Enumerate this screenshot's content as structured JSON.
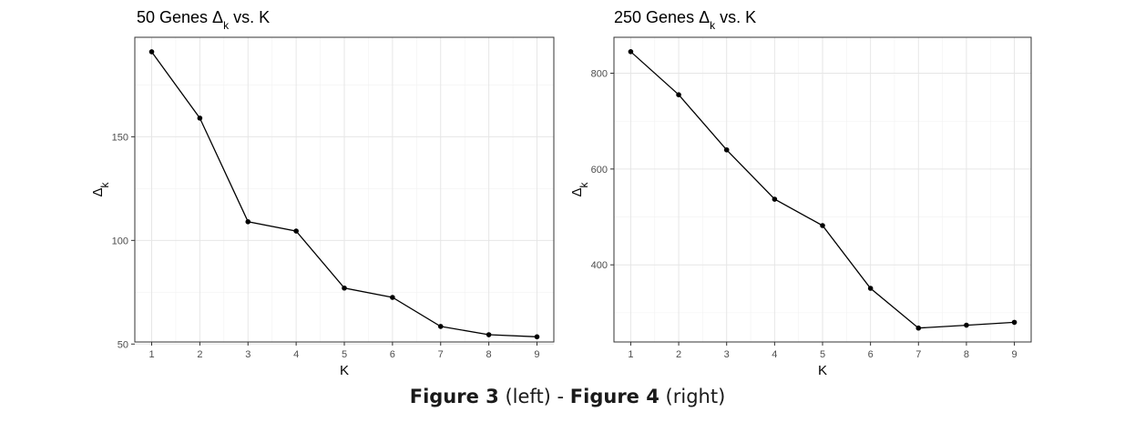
{
  "chart_data": [
    {
      "type": "line",
      "title": "50 Genes Δk vs. K",
      "xlabel": "K",
      "ylabel": "Δk",
      "x": [
        1,
        2,
        3,
        4,
        5,
        6,
        7,
        8,
        9
      ],
      "y": [
        191,
        159,
        109,
        104.5,
        77,
        72.5,
        58.5,
        54.5,
        53.5
      ],
      "xlim": [
        0.65,
        9.35
      ],
      "ylim": [
        51,
        198
      ],
      "yticks": [
        50,
        100,
        150
      ],
      "ylim_pad_note": "",
      "grid": true,
      "legend": "none"
    },
    {
      "type": "line",
      "title": "250 Genes Δk vs. K",
      "xlabel": "K",
      "ylabel": "Δk",
      "x": [
        1,
        2,
        3,
        4,
        5,
        6,
        7,
        8,
        9
      ],
      "y": [
        845,
        755,
        640,
        537,
        482,
        351,
        268,
        274,
        280
      ],
      "xlim": [
        0.65,
        9.35
      ],
      "ylim": [
        239,
        875
      ],
      "yticks": [
        400,
        600,
        800
      ],
      "grid": true,
      "legend": "none"
    }
  ],
  "caption": {
    "fig3": "Figure 3",
    "left": "(left) - ",
    "fig4": "Figure 4",
    "right": "(right)"
  }
}
